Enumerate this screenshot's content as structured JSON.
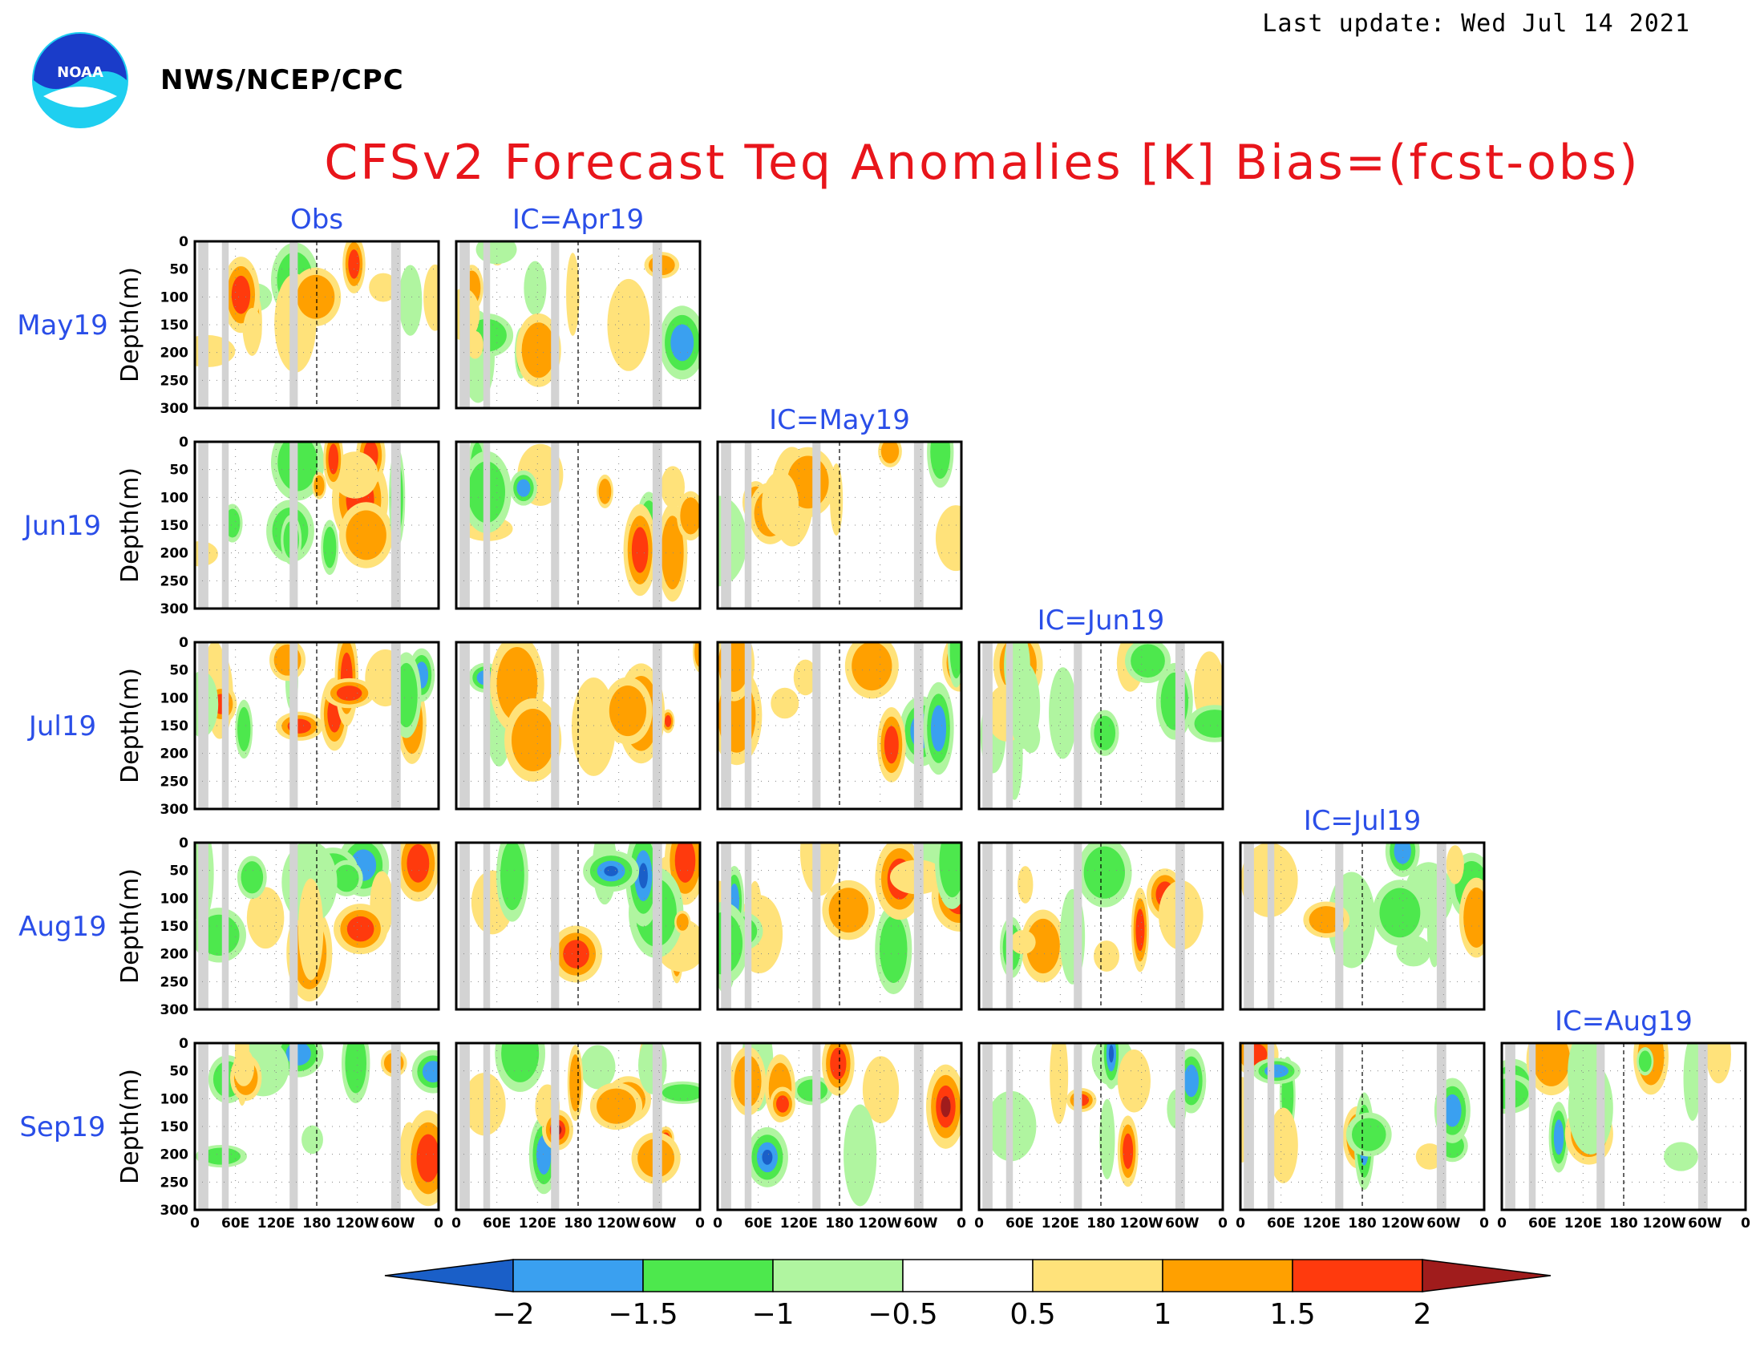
{
  "header": {
    "last_update": "Last update: Wed Jul 14 2021",
    "agency": "NWS/NCEP/CPC",
    "logo_text": "NOAA",
    "title": "CFSv2 Forecast Teq Anomalies [K] Bias=(fcst-obs)"
  },
  "colors": {
    "title": "#e8151b",
    "labels": "#2a4ee8",
    "land_mask": "#d3d3d3"
  },
  "chart_data": {
    "type": "heatmap",
    "title": "CFSv2 Forecast Teq Anomalies [K] Bias=(fcst-obs)",
    "columns": [
      "Obs",
      "IC=Apr19",
      "IC=May19",
      "IC=Jun19",
      "IC=Jul19",
      "IC=Aug19"
    ],
    "rows": [
      "May19",
      "Jun19",
      "Jul19",
      "Aug19",
      "Sep19"
    ],
    "panel_rule": "Panel (row r, column c) is shown when c <= r + 1 (lower-left triangle)",
    "ylabel": "Depth(m)",
    "y_ticks": [
      "0",
      "50",
      "100",
      "150",
      "200",
      "250",
      "300"
    ],
    "ylim": [
      300,
      0
    ],
    "x_ticks": [
      "0",
      "60E",
      "120E",
      "180",
      "120W",
      "60W",
      "0"
    ],
    "xlim_degrees_east": [
      0,
      360
    ],
    "land_mask_longitudes": [
      [
        5,
        20
      ],
      [
        40,
        50
      ],
      [
        140,
        152
      ],
      [
        290,
        304
      ]
    ],
    "colorbar": {
      "tick_labels": [
        "-2",
        "-1.5",
        "-1",
        "-0.5",
        "0.5",
        "1",
        "1.5",
        "2"
      ],
      "bin_colors": [
        "#1a5fc8",
        "#3aa0f0",
        "#4de84d",
        "#b0f5a0",
        "#ffffff",
        "#ffe27a",
        "#ffa000",
        "#ff3a0d",
        "#a01c1c"
      ],
      "extend": "both"
    }
  }
}
